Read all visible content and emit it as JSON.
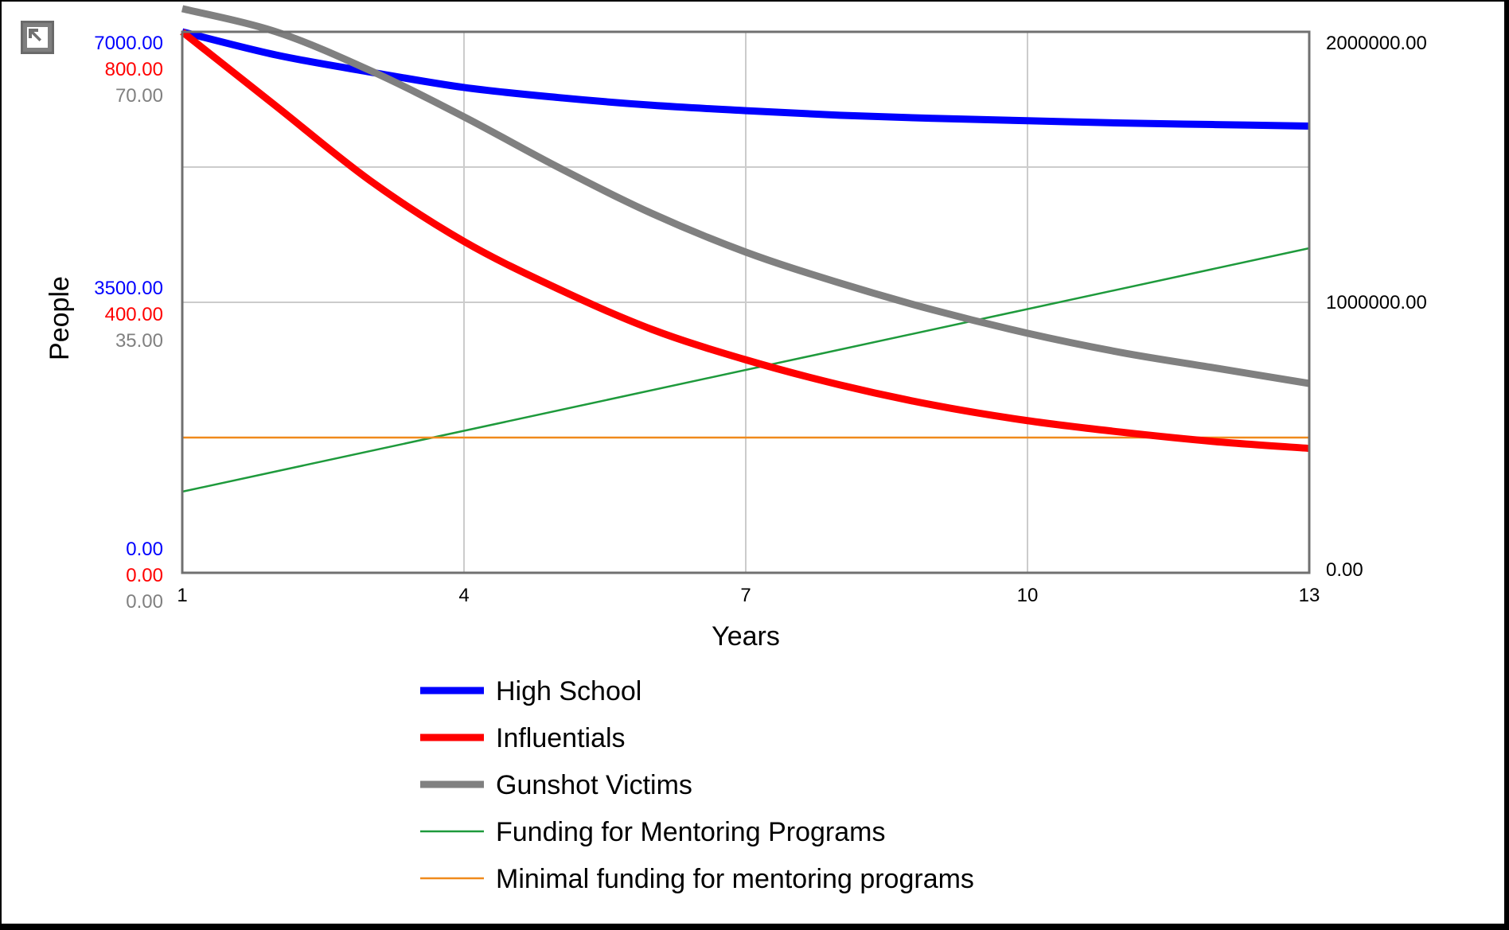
{
  "toolbar": {
    "expand_icon": "expand-arrow-icon"
  },
  "chart_data": {
    "type": "line",
    "title": "",
    "xlabel": "Years",
    "ylabel": "People",
    "x_ticks": [
      1,
      4,
      7,
      10,
      13
    ],
    "xlim": [
      1,
      13
    ],
    "left_axes": [
      {
        "series": "High School",
        "color": "#0000ff",
        "ylim": [
          0,
          7000
        ],
        "tick_labels": [
          "0.00",
          "3500.00",
          "7000.00"
        ]
      },
      {
        "series": "Influentials",
        "color": "#ff0000",
        "ylim": [
          0,
          800
        ],
        "tick_labels": [
          "0.00",
          "400.00",
          "800.00"
        ]
      },
      {
        "series": "Gunshot Victims",
        "color": "#808080",
        "ylim": [
          0,
          70
        ],
        "tick_labels": [
          "0.00",
          "35.00",
          "70.00"
        ]
      }
    ],
    "right_axis": {
      "ylim": [
        0,
        2000000
      ],
      "tick_labels": [
        "0.00",
        "1000000.00",
        "2000000.00"
      ],
      "color": "#000000"
    },
    "grid": true,
    "legend_position": "bottom",
    "series": [
      {
        "name": "High School",
        "color": "#0000ff",
        "width": "thick",
        "axis": 0,
        "x": [
          1,
          2,
          3,
          4,
          5,
          6,
          7,
          8,
          9,
          10,
          11,
          12,
          13
        ],
        "y": [
          7000,
          6700,
          6480,
          6280,
          6150,
          6050,
          5980,
          5920,
          5880,
          5850,
          5820,
          5800,
          5780
        ]
      },
      {
        "name": "Influentials",
        "color": "#ff0000",
        "width": "thick",
        "axis": 1,
        "x": [
          1,
          2,
          3,
          4,
          5,
          6,
          7,
          8,
          9,
          10,
          11,
          12,
          13
        ],
        "y": [
          800,
          690,
          580,
          490,
          420,
          360,
          315,
          278,
          248,
          225,
          208,
          194,
          184
        ]
      },
      {
        "name": "Gunshot Victims",
        "color": "#808080",
        "width": "thick",
        "axis": 2,
        "x": [
          1,
          2,
          3,
          4,
          5,
          6,
          7,
          8,
          9,
          10,
          11,
          12,
          13
        ],
        "y": [
          73,
          70,
          65,
          59,
          52.5,
          46.5,
          41.5,
          37.5,
          34,
          31,
          28.5,
          26.5,
          24.5
        ]
      },
      {
        "name": "Funding for Mentoring Programs",
        "color": "#1e9a3c",
        "width": "thin",
        "axis": "right",
        "x": [
          1,
          13
        ],
        "y": [
          300000,
          1200000
        ]
      },
      {
        "name": "Minimal funding for mentoring programs",
        "color": "#f08a1c",
        "width": "thin",
        "axis": "right",
        "x": [
          1,
          13
        ],
        "y": [
          500000,
          500000
        ]
      }
    ]
  }
}
